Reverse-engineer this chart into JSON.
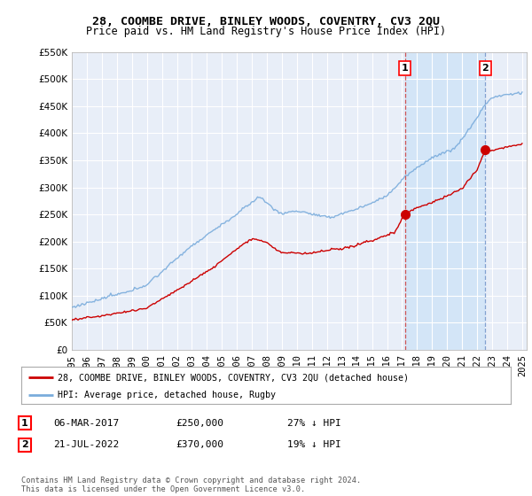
{
  "title": "28, COOMBE DRIVE, BINLEY WOODS, COVENTRY, CV3 2QU",
  "subtitle": "Price paid vs. HM Land Registry's House Price Index (HPI)",
  "ylim": [
    0,
    550000
  ],
  "yticks": [
    0,
    50000,
    100000,
    150000,
    200000,
    250000,
    300000,
    350000,
    400000,
    450000,
    500000,
    550000
  ],
  "background_color": "#ffffff",
  "plot_bg_color": "#e8eef8",
  "grid_color": "#ffffff",
  "sale1_date_x": 2017.18,
  "sale1_price": 250000,
  "sale2_date_x": 2022.55,
  "sale2_price": 370000,
  "legend_label_red": "28, COOMBE DRIVE, BINLEY WOODS, COVENTRY, CV3 2QU (detached house)",
  "legend_label_blue": "HPI: Average price, detached house, Rugby",
  "footer": "Contains HM Land Registry data © Crown copyright and database right 2024.\nThis data is licensed under the Open Government Licence v3.0.",
  "red_color": "#cc0000",
  "blue_color": "#7aacdc",
  "highlight_bg": "#d0e4f7",
  "xmin": 1995,
  "xmax": 2025.3
}
